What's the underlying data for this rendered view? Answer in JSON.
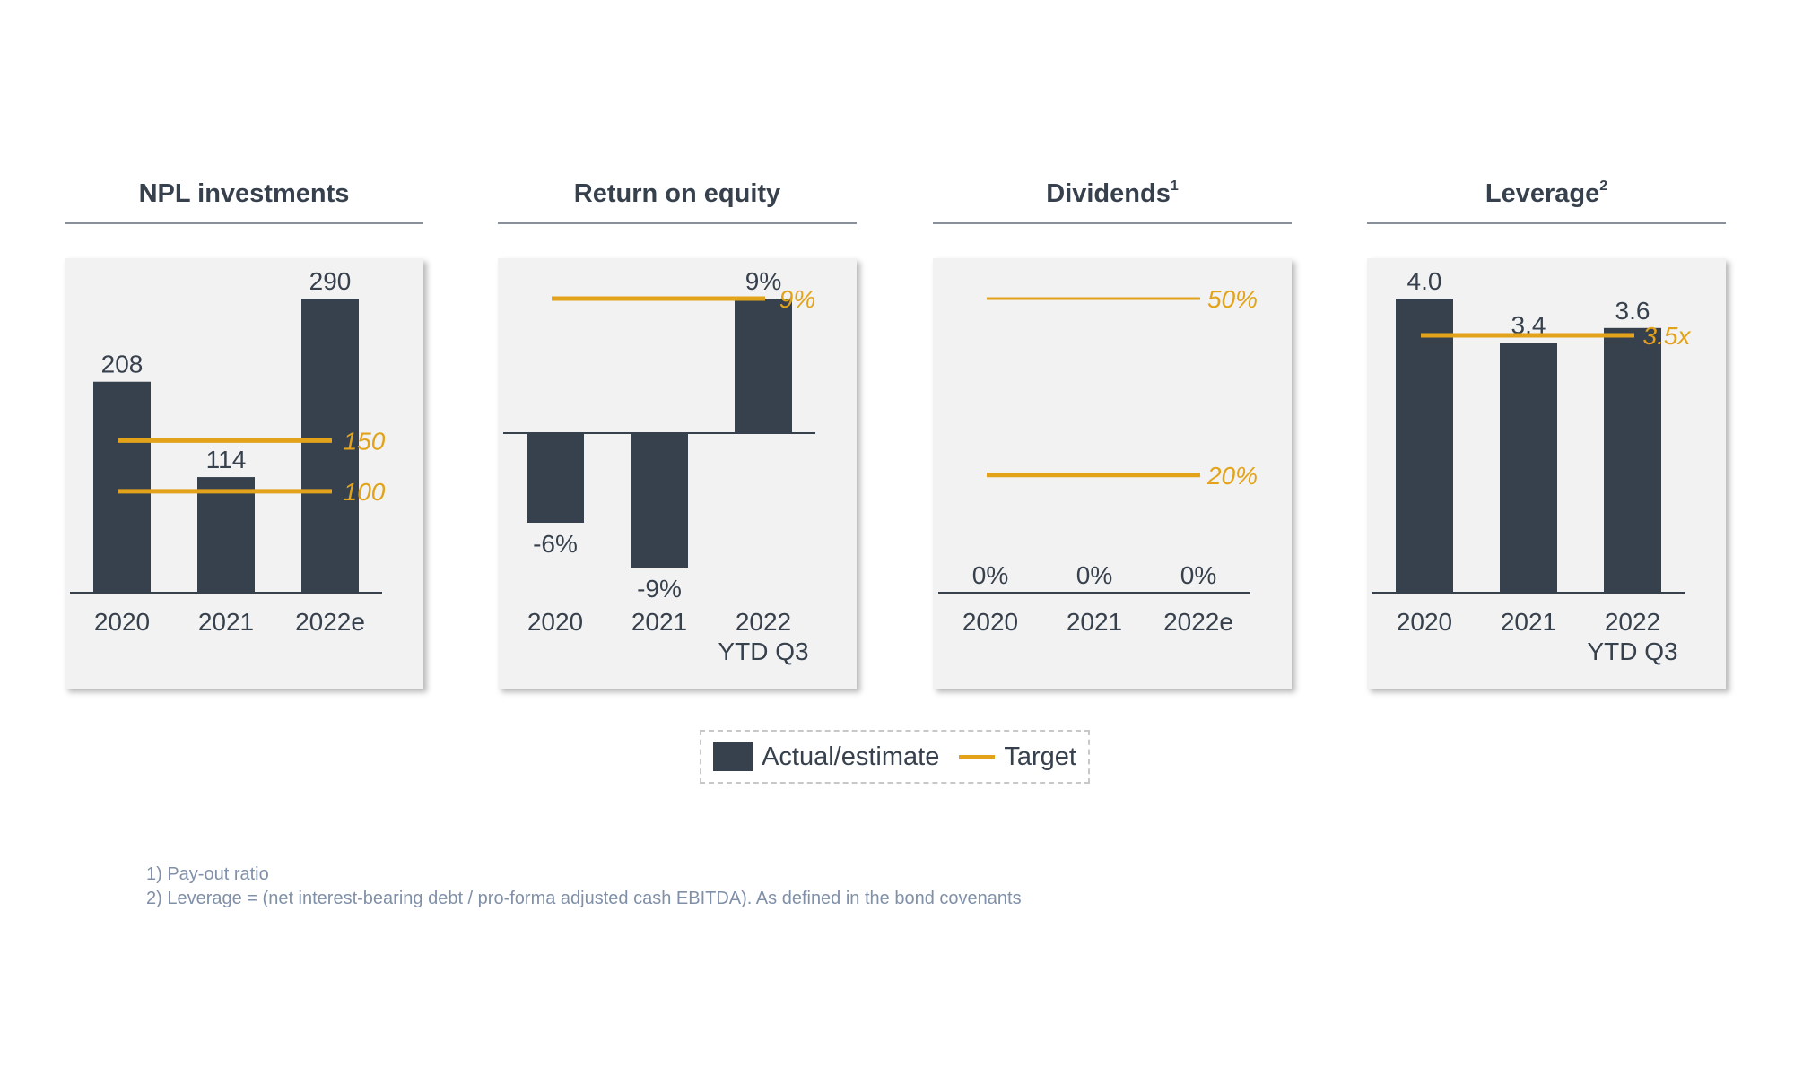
{
  "colors": {
    "bar": "#37414d",
    "target": "#e2a31b",
    "text": "#37414d",
    "axis": "#37414d"
  },
  "legend": {
    "actual_label": "Actual/estimate",
    "target_label": "Target"
  },
  "footnotes": [
    "1) Pay-out ratio",
    "2) Leverage = (net interest-bearing debt / pro-forma adjusted cash EBITDA). As defined in the bond covenants"
  ],
  "chart_data": [
    {
      "type": "bar",
      "title": "NPL investments",
      "title_sup": "",
      "categories": [
        "2020",
        "2021",
        "2022e"
      ],
      "values": [
        208,
        114,
        290
      ],
      "value_labels": [
        "208",
        "114",
        "290"
      ],
      "ylim": [
        0,
        290
      ],
      "targets": [
        {
          "value": 150,
          "label": "150",
          "style": "thick"
        },
        {
          "value": 100,
          "label": "100",
          "style": "thick"
        }
      ]
    },
    {
      "type": "bar",
      "title": "Return on equity",
      "title_sup": "",
      "categories": [
        "2020",
        "2021",
        "2022\nYTD Q3"
      ],
      "values": [
        -6,
        -9,
        9
      ],
      "value_labels": [
        "-6%",
        "-9%",
        "9%"
      ],
      "ylim": [
        -9,
        9
      ],
      "targets": [
        {
          "value": 9,
          "label": "9%",
          "style": "thick"
        }
      ]
    },
    {
      "type": "bar",
      "title": "Dividends",
      "title_sup": "1",
      "categories": [
        "2020",
        "2021",
        "2022e"
      ],
      "values": [
        0,
        0,
        0
      ],
      "value_labels": [
        "0%",
        "0%",
        "0%"
      ],
      "ylim": [
        0,
        50
      ],
      "targets": [
        {
          "value": 50,
          "label": "50%",
          "style": "thin"
        },
        {
          "value": 20,
          "label": "20%",
          "style": "thick"
        }
      ]
    },
    {
      "type": "bar",
      "title": "Leverage",
      "title_sup": "2",
      "categories": [
        "2020",
        "2021",
        "2022\nYTD Q3"
      ],
      "values": [
        4.0,
        3.4,
        3.6
      ],
      "value_labels": [
        "4.0",
        "3.4",
        "3.6"
      ],
      "ylim": [
        0,
        4.0
      ],
      "targets": [
        {
          "value": 3.5,
          "label": "3.5x",
          "style": "thick"
        }
      ]
    }
  ]
}
